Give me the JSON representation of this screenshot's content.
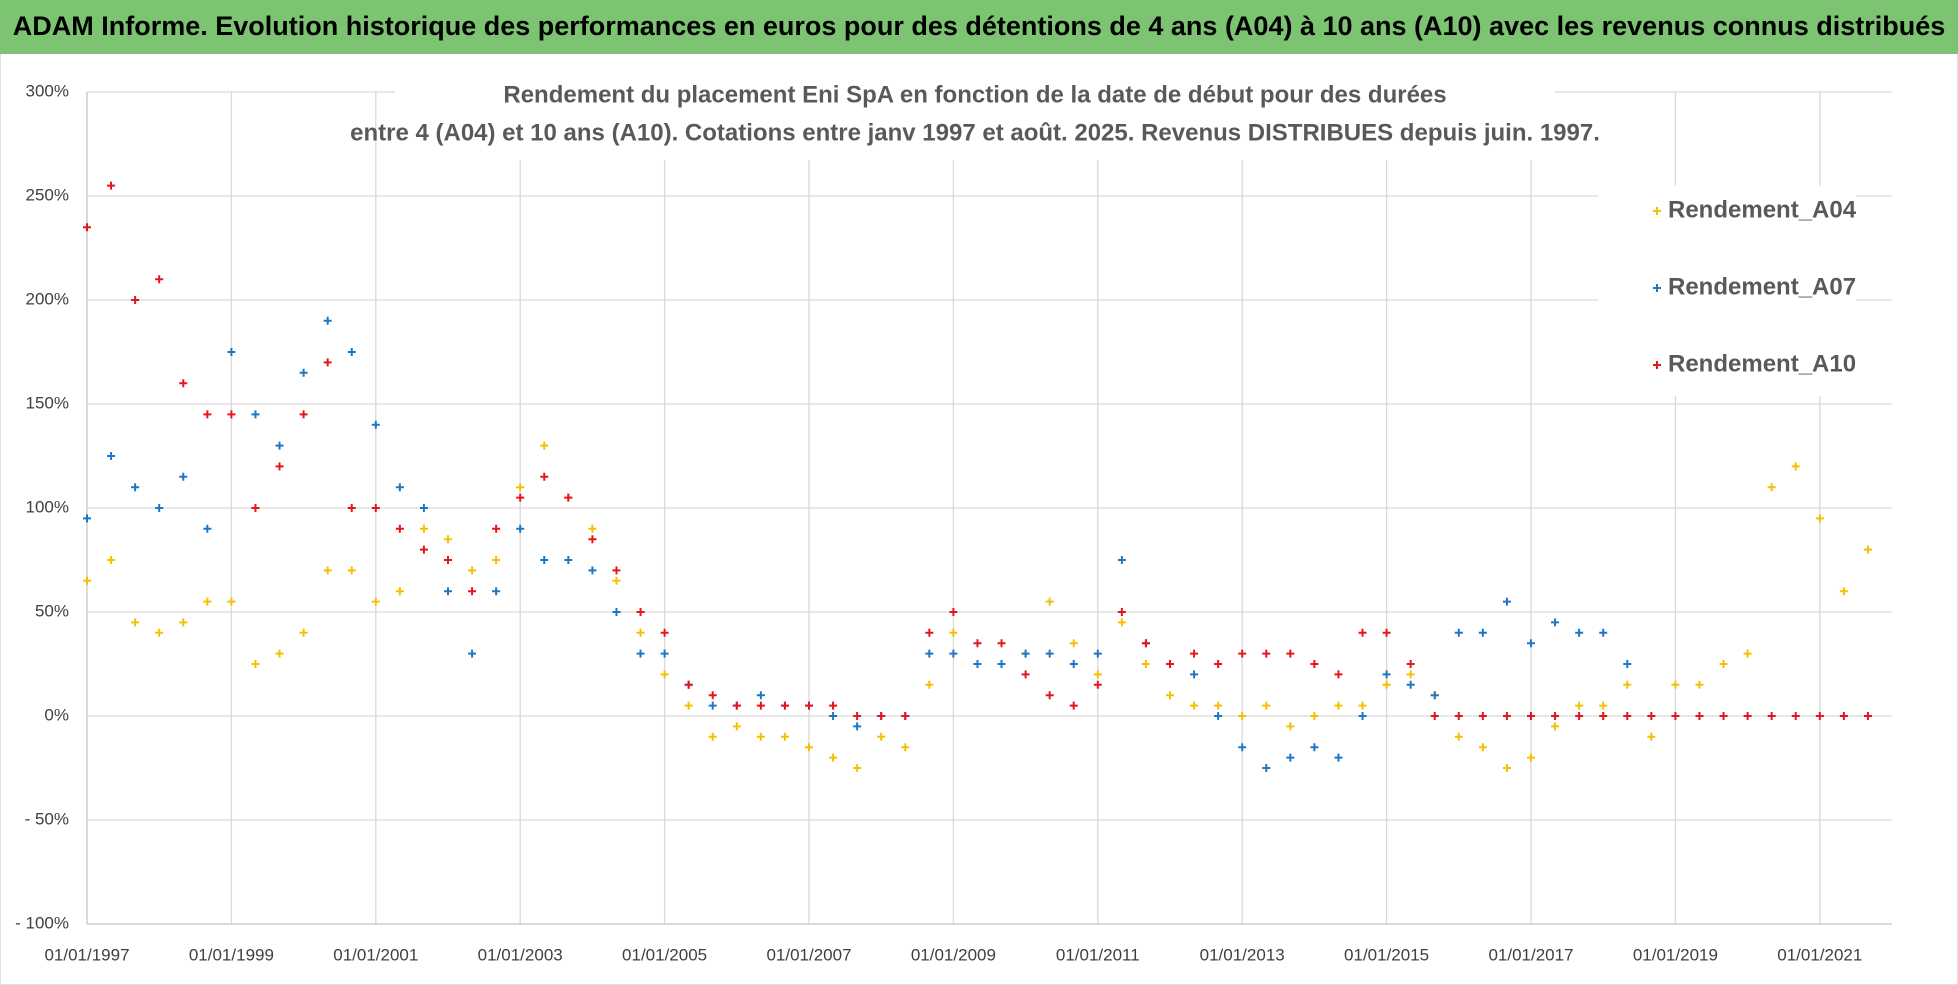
{
  "chart_data": {
    "type": "scatter",
    "title": "ADAM Informe. Evolution historique des performances en euros pour des détentions de 4 ans (A04) à 10 ans (A10) avec les revenus connus distribués",
    "subtitle": [
      "Rendement du placement Eni SpA en fonction de la date de début pour des durées",
      "entre 4 (A04) et 10 ans (A10).  Cotations entre janv 1997 et août. 2025. Revenus DISTRIBUES depuis juin. 1997."
    ],
    "xlim": [
      "01/01/1997",
      "01/01/2022"
    ],
    "xticks": [
      "01/01/1997",
      "01/01/1999",
      "01/01/2001",
      "01/01/2003",
      "01/01/2005",
      "01/01/2007",
      "01/01/2009",
      "01/01/2011",
      "01/01/2013",
      "01/01/2015",
      "01/01/2017",
      "01/01/2019",
      "01/01/2021"
    ],
    "ylim": [
      -100,
      300
    ],
    "yticks": [
      {
        "value": -100,
        "label": "- 100%"
      },
      {
        "value": -50,
        "label": "- 50%"
      },
      {
        "value": 0,
        "label": "0%"
      },
      {
        "value": 50,
        "label": "50%"
      },
      {
        "value": 100,
        "label": "100%"
      },
      {
        "value": 150,
        "label": "150%"
      },
      {
        "value": 200,
        "label": "200%"
      },
      {
        "value": 250,
        "label": "250%"
      },
      {
        "value": 300,
        "label": "300%"
      }
    ],
    "grid": true,
    "legend": "right",
    "series": [
      {
        "name": "Rendement_A04",
        "color": "#f5c000",
        "x": [
          "01/01/1997",
          "01/05/1997",
          "01/09/1997",
          "01/01/1998",
          "01/05/1998",
          "01/09/1998",
          "01/01/1999",
          "01/05/1999",
          "01/09/1999",
          "01/01/2000",
          "01/05/2000",
          "01/09/2000",
          "01/01/2001",
          "01/05/2001",
          "01/09/2001",
          "01/01/2002",
          "01/05/2002",
          "01/09/2002",
          "01/01/2003",
          "01/05/2003",
          "01/09/2003",
          "01/01/2004",
          "01/05/2004",
          "01/09/2004",
          "01/01/2005",
          "01/05/2005",
          "01/09/2005",
          "01/01/2006",
          "01/05/2006",
          "01/09/2006",
          "01/01/2007",
          "01/05/2007",
          "01/09/2007",
          "01/01/2008",
          "01/05/2008",
          "01/09/2008",
          "01/01/2009",
          "01/05/2009",
          "01/09/2009",
          "01/01/2010",
          "01/05/2010",
          "01/09/2010",
          "01/01/2011",
          "01/05/2011",
          "01/09/2011",
          "01/01/2012",
          "01/05/2012",
          "01/09/2012",
          "01/01/2013",
          "01/05/2013",
          "01/09/2013",
          "01/01/2014",
          "01/05/2014",
          "01/09/2014",
          "01/01/2015",
          "01/05/2015",
          "01/09/2015",
          "01/01/2016",
          "01/05/2016",
          "01/09/2016",
          "01/01/2017",
          "01/05/2017",
          "01/09/2017",
          "01/01/2018",
          "01/05/2018",
          "01/09/2018",
          "01/01/2019",
          "01/05/2019",
          "01/09/2019",
          "01/01/2020",
          "01/05/2020",
          "01/09/2020",
          "01/01/2021",
          "01/05/2021",
          "01/09/2021"
        ],
        "values": [
          65,
          75,
          45,
          40,
          45,
          55,
          55,
          25,
          30,
          40,
          70,
          70,
          55,
          60,
          90,
          85,
          70,
          75,
          110,
          130,
          105,
          90,
          65,
          40,
          20,
          5,
          -10,
          -5,
          -10,
          -10,
          -15,
          -20,
          -25,
          -10,
          -15,
          15,
          40,
          25,
          25,
          30,
          55,
          35,
          20,
          45,
          25,
          10,
          5,
          5,
          0,
          5,
          -5,
          0,
          5,
          5,
          15,
          20,
          10,
          -10,
          -15,
          -25,
          -20,
          -5,
          5,
          5,
          15,
          -10,
          15,
          15,
          25,
          30,
          110,
          120,
          95,
          60,
          80
        ]
      },
      {
        "name": "Rendement_A07",
        "color": "#1f77c4",
        "x": [
          "01/01/1997",
          "01/05/1997",
          "01/09/1997",
          "01/01/1998",
          "01/05/1998",
          "01/09/1998",
          "01/01/1999",
          "01/05/1999",
          "01/09/1999",
          "01/01/2000",
          "01/05/2000",
          "01/09/2000",
          "01/01/2001",
          "01/05/2001",
          "01/09/2001",
          "01/01/2002",
          "01/05/2002",
          "01/09/2002",
          "01/01/2003",
          "01/05/2003",
          "01/09/2003",
          "01/01/2004",
          "01/05/2004",
          "01/09/2004",
          "01/01/2005",
          "01/05/2005",
          "01/09/2005",
          "01/01/2006",
          "01/05/2006",
          "01/09/2006",
          "01/01/2007",
          "01/05/2007",
          "01/09/2007",
          "01/01/2008",
          "01/05/2008",
          "01/09/2008",
          "01/01/2009",
          "01/05/2009",
          "01/09/2009",
          "01/01/2010",
          "01/05/2010",
          "01/09/2010",
          "01/01/2011",
          "01/05/2011",
          "01/09/2011",
          "01/01/2012",
          "01/05/2012",
          "01/09/2012",
          "01/01/2013",
          "01/05/2013",
          "01/09/2013",
          "01/01/2014",
          "01/05/2014",
          "01/09/2014",
          "01/01/2015",
          "01/05/2015",
          "01/09/2015",
          "01/01/2016",
          "01/05/2016",
          "01/09/2016",
          "01/01/2017",
          "01/05/2017",
          "01/09/2017",
          "01/01/2018",
          "01/05/2018"
        ],
        "values": [
          95,
          125,
          110,
          100,
          115,
          90,
          175,
          145,
          130,
          165,
          190,
          175,
          140,
          110,
          100,
          60,
          30,
          60,
          90,
          75,
          75,
          70,
          50,
          30,
          30,
          15,
          5,
          5,
          10,
          5,
          5,
          0,
          -5,
          0,
          0,
          30,
          30,
          25,
          25,
          30,
          30,
          25,
          30,
          75,
          35,
          25,
          20,
          0,
          -15,
          -25,
          -20,
          -15,
          -20,
          0,
          20,
          15,
          10,
          40,
          40,
          55,
          35,
          45,
          40,
          40,
          25
        ]
      },
      {
        "name": "Rendement_A10",
        "color": "#e8141c",
        "x": [
          "01/01/1997",
          "01/05/1997",
          "01/09/1997",
          "01/01/1998",
          "01/05/1998",
          "01/09/1998",
          "01/01/1999",
          "01/05/1999",
          "01/09/1999",
          "01/01/2000",
          "01/05/2000",
          "01/09/2000",
          "01/01/2001",
          "01/05/2001",
          "01/09/2001",
          "01/01/2002",
          "01/05/2002",
          "01/09/2002",
          "01/01/2003",
          "01/05/2003",
          "01/09/2003",
          "01/01/2004",
          "01/05/2004",
          "01/09/2004",
          "01/01/2005",
          "01/05/2005",
          "01/09/2005",
          "01/01/2006",
          "01/05/2006",
          "01/09/2006",
          "01/01/2007",
          "01/05/2007",
          "01/09/2007",
          "01/01/2008",
          "01/05/2008",
          "01/09/2008",
          "01/01/2009",
          "01/05/2009",
          "01/09/2009",
          "01/01/2010",
          "01/05/2010",
          "01/09/2010",
          "01/01/2011",
          "01/05/2011",
          "01/09/2011",
          "01/01/2012",
          "01/05/2012",
          "01/09/2012",
          "01/01/2013",
          "01/05/2013",
          "01/09/2013",
          "01/01/2014",
          "01/05/2014",
          "01/09/2014",
          "01/01/2015",
          "01/05/2015",
          "01/09/2015",
          "01/01/2016",
          "01/05/2016",
          "01/09/2016",
          "01/01/2017",
          "01/05/2017",
          "01/09/2017",
          "01/01/2018",
          "01/05/2018",
          "01/09/2018",
          "01/01/2019",
          "01/05/2019",
          "01/09/2019",
          "01/01/2020",
          "01/05/2020",
          "01/09/2020",
          "01/01/2021",
          "01/05/2021",
          "01/09/2021"
        ],
        "values": [
          235,
          255,
          200,
          210,
          160,
          145,
          145,
          100,
          120,
          145,
          170,
          100,
          100,
          90,
          80,
          75,
          60,
          90,
          105,
          115,
          105,
          85,
          70,
          50,
          40,
          15,
          10,
          5,
          5,
          5,
          5,
          5,
          0,
          0,
          0,
          40,
          50,
          35,
          35,
          20,
          10,
          5,
          15,
          50,
          35,
          25,
          30,
          25,
          30,
          30,
          30,
          25,
          20,
          40,
          40,
          25,
          0,
          0,
          0,
          0,
          0,
          0,
          0,
          0,
          0,
          0,
          0,
          0,
          0,
          0,
          0,
          0,
          0,
          0,
          0
        ]
      }
    ]
  }
}
